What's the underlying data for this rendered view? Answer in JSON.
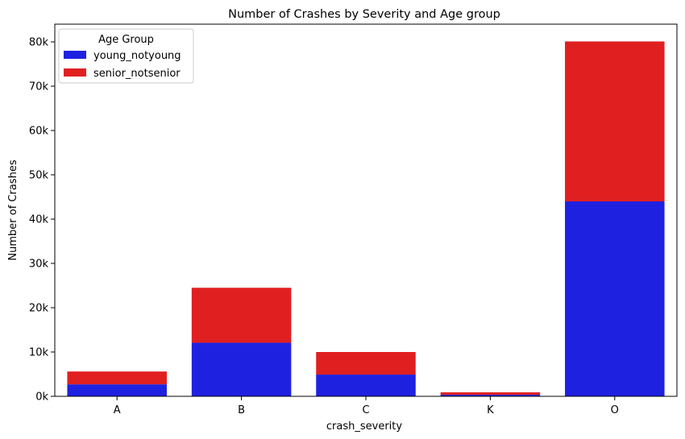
{
  "chart_data": {
    "type": "bar",
    "stacked": true,
    "title": "Number of Crashes by Severity and Age group",
    "xlabel": "crash_severity",
    "ylabel": "Number of Crashes",
    "categories": [
      "A",
      "B",
      "C",
      "K",
      "O"
    ],
    "series": [
      {
        "name": "young_notyoung",
        "color": "#1f21e1",
        "values": [
          2700,
          12100,
          4900,
          350,
          44000
        ]
      },
      {
        "name": "senior_notsenior",
        "color": "#e02020",
        "values": [
          2900,
          12400,
          5100,
          550,
          36100
        ]
      }
    ],
    "ylim": [
      0,
      84000
    ],
    "yticks": [
      0,
      10000,
      20000,
      30000,
      40000,
      50000,
      60000,
      70000,
      80000
    ],
    "ytick_labels": [
      "0k",
      "10k",
      "20k",
      "30k",
      "40k",
      "50k",
      "60k",
      "70k",
      "80k"
    ],
    "grid": false,
    "legend": {
      "title": "Age Group",
      "placement": "top-left"
    }
  }
}
